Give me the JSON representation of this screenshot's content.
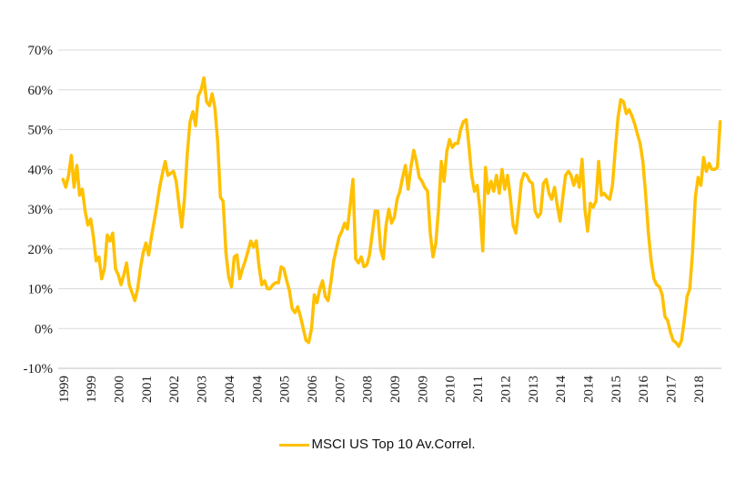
{
  "chart_data": {
    "type": "line",
    "title": "",
    "series": [
      {
        "name": "MSCI US Top 10 Av.Correl.",
        "color": "#FFC000",
        "start": "1999-01",
        "frequency": "monthly",
        "unit": "percent",
        "values_pct": [
          37.5,
          35.5,
          38.5,
          43.5,
          35.5,
          41,
          33.5,
          35,
          29.5,
          26,
          27.5,
          23,
          17,
          18,
          12.5,
          15,
          23.5,
          22,
          24,
          15,
          13.5,
          11,
          13.5,
          16.5,
          11,
          9,
          7,
          10,
          15,
          19,
          21.5,
          18.5,
          23,
          27,
          31,
          35.5,
          39,
          42,
          38.5,
          39,
          39.5,
          37,
          31,
          25.5,
          33,
          44,
          52,
          54.5,
          51,
          58.5,
          60,
          63,
          57,
          56,
          59,
          55.5,
          47,
          33,
          32,
          19,
          13,
          10.5,
          18,
          18.5,
          12.5,
          15,
          17,
          19.5,
          22,
          20.5,
          22,
          15.5,
          11,
          12,
          10,
          10,
          11,
          11.5,
          11.5,
          15.5,
          15,
          12,
          9.5,
          5,
          4,
          5.5,
          3,
          0,
          -3,
          -3.5,
          0,
          8.5,
          6.5,
          10,
          12,
          8,
          7,
          11.5,
          17,
          20,
          23,
          24.5,
          26.5,
          25,
          31,
          37.5,
          17.5,
          16.5,
          18,
          15.5,
          16,
          18.5,
          24,
          29.5,
          29.5,
          20,
          17.5,
          26,
          30,
          26.5,
          28,
          32.5,
          34.5,
          38,
          41,
          35,
          40.5,
          44.8,
          42,
          38,
          37,
          35.5,
          34.5,
          24,
          18,
          21.5,
          30,
          42,
          37,
          44.5,
          47.5,
          45.5,
          46.5,
          46.5,
          50,
          52,
          52.5,
          46,
          38.5,
          34.5,
          36,
          30,
          19.5,
          40.5,
          34,
          37,
          34.5,
          38.5,
          34,
          40,
          35,
          38.5,
          33,
          26,
          24,
          30,
          37,
          39,
          38.5,
          37,
          36.5,
          29.5,
          28,
          29,
          36.5,
          37.5,
          34,
          32.5,
          35.5,
          31,
          27,
          33,
          38.5,
          39.5,
          38.5,
          36,
          38.5,
          35.5,
          42.5,
          30,
          24.5,
          31.5,
          30.5,
          32,
          42,
          33.5,
          34,
          33,
          32.5,
          36,
          45,
          53,
          57.5,
          57,
          54,
          55,
          53.5,
          51.5,
          49,
          46.5,
          42,
          34,
          24,
          17,
          12.5,
          11,
          10.5,
          8.5,
          3,
          2,
          -1,
          -3,
          -3.5,
          -4.5,
          -3,
          2,
          8,
          10,
          19,
          33,
          38,
          36,
          43,
          39.5,
          41.5,
          40,
          40,
          40.5,
          52
        ]
      }
    ],
    "y_axis": {
      "min": -10,
      "max": 70,
      "step": 10,
      "tick_format": "percent",
      "labels": [
        "70%",
        "60%",
        "50%",
        "40%",
        "30%",
        "20%",
        "10%",
        "0%",
        "-10%"
      ]
    },
    "x_axis": {
      "tick_every_months": 10,
      "labels": [
        "1999",
        "1999",
        "2000",
        "2001",
        "2002",
        "2003",
        "2004",
        "2004",
        "2005",
        "2006",
        "2007",
        "2008",
        "2009",
        "2009",
        "2010",
        "2011",
        "2012",
        "2013",
        "2014",
        "2014",
        "2015",
        "2016",
        "2017",
        "2018"
      ]
    },
    "grid": {
      "horizontal": true,
      "vertical": false,
      "color": "#d9d9d9",
      "axis_color": "#bfbfbf"
    },
    "legend": {
      "position": "bottom",
      "label": "MSCI US Top 10 Av.Correl.",
      "swatch_color": "#FFC000"
    }
  }
}
